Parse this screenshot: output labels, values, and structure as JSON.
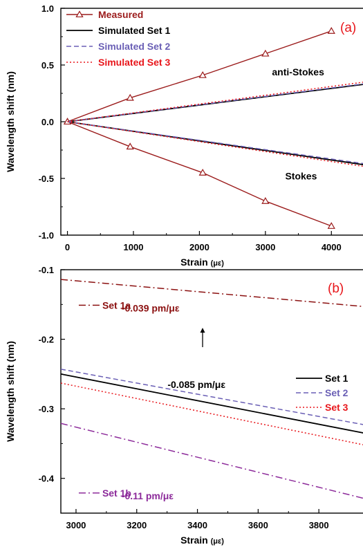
{
  "colors": {
    "measured": "#9b1b1b",
    "set1": "#000000",
    "set2": "#6a5fb5",
    "set3": "#e8161b",
    "set1a": "#8b1010",
    "set1b": "#8c2a9a",
    "panel_label": "#e8161b"
  },
  "chart_data": [
    {
      "type": "line",
      "panel_label": "(a)",
      "xlabel": "Strain",
      "xlabel_unit": "(με)",
      "ylabel": "Wavelength shift (nm)",
      "xlim": [
        -100,
        4500
      ],
      "ylim": [
        -1.0,
        1.0
      ],
      "x_ticks": [
        0,
        1000,
        2000,
        3000,
        4000
      ],
      "x_tick_labels": [
        "0",
        "1000",
        "2000",
        "3000",
        "4000"
      ],
      "y_ticks": [
        1.0,
        0.5,
        0.0,
        -0.5,
        -1.0
      ],
      "y_tick_labels": [
        "1.0",
        "0.5",
        "0.0",
        "-0.5",
        "-1.0"
      ],
      "legend_position": "top-left",
      "annotations": [
        {
          "text": "anti-Stokes",
          "x": 3100,
          "y": 0.41
        },
        {
          "text": "Stokes",
          "x": 3300,
          "y": -0.51
        }
      ],
      "series": [
        {
          "name": "Measured",
          "style": "measured",
          "branch": "anti-Stokes",
          "x": [
            0,
            950,
            2050,
            3000,
            4000
          ],
          "y": [
            0.0,
            0.21,
            0.41,
            0.6,
            0.8
          ]
        },
        {
          "name": "Measured",
          "style": "measured",
          "branch": "Stokes",
          "x": [
            0,
            950,
            2050,
            3000,
            4000
          ],
          "y": [
            0.0,
            -0.22,
            -0.45,
            -0.7,
            -0.92
          ]
        },
        {
          "name": "Simulated Set 1",
          "style": "set1",
          "branch": "anti-Stokes",
          "x": [
            0,
            4500
          ],
          "y": [
            0.0,
            0.33
          ]
        },
        {
          "name": "Simulated Set 1",
          "style": "set1",
          "branch": "Stokes",
          "x": [
            0,
            4500
          ],
          "y": [
            0.0,
            -0.38
          ]
        },
        {
          "name": "Simulated Set 2",
          "style": "set2",
          "branch": "anti-Stokes",
          "x": [
            0,
            4500
          ],
          "y": [
            0.0,
            0.335
          ]
        },
        {
          "name": "Simulated Set 2",
          "style": "set2",
          "branch": "Stokes",
          "x": [
            0,
            4500
          ],
          "y": [
            0.0,
            -0.37
          ]
        },
        {
          "name": "Simulated Set 3",
          "style": "set3",
          "branch": "anti-Stokes",
          "x": [
            0,
            4500
          ],
          "y": [
            0.0,
            0.35
          ]
        },
        {
          "name": "Simulated Set 3",
          "style": "set3",
          "branch": "Stokes",
          "x": [
            0,
            4500
          ],
          "y": [
            0.0,
            -0.395
          ]
        }
      ]
    },
    {
      "type": "line",
      "panel_label": "(b)",
      "xlabel": "Strain",
      "xlabel_unit": "(με)",
      "ylabel": "Wavelength shift (nm)",
      "xlim": [
        2950,
        3950
      ],
      "ylim": [
        -0.45,
        -0.1
      ],
      "x_ticks": [
        3000,
        3200,
        3400,
        3600,
        3800
      ],
      "x_tick_labels": [
        "3000",
        "3200",
        "3400",
        "3600",
        "3800"
      ],
      "y_ticks": [
        -0.1,
        -0.2,
        -0.3,
        -0.4
      ],
      "y_tick_labels": [
        "-0.1",
        "-0.2",
        "-0.3",
        "-0.4"
      ],
      "legend_position": "center-right",
      "rate_annotations": [
        {
          "text": "-0.085 pm/με",
          "x": 3420,
          "y": -0.265
        },
        {
          "text": "-0.039 pm/με",
          "x": 3150,
          "y": -0.155
        },
        {
          "text": "-0.11 pm/με",
          "x": 3150,
          "y": -0.425
        }
      ],
      "inline_labels": [
        {
          "text": "Set 1a",
          "style": "set1a",
          "x": 3000,
          "y": -0.155
        },
        {
          "text": "Set 1b",
          "style": "set1b",
          "x": 3000,
          "y": -0.425
        }
      ],
      "series": [
        {
          "name": "Set 1a",
          "style": "set1a",
          "x": [
            2950,
            3950
          ],
          "y": [
            -0.114,
            -0.153
          ]
        },
        {
          "name": "Set 1",
          "style": "set1",
          "x": [
            2950,
            3950
          ],
          "y": [
            -0.25,
            -0.335
          ]
        },
        {
          "name": "Set 2",
          "style": "set2",
          "x": [
            2950,
            3950
          ],
          "y": [
            -0.243,
            -0.323
          ]
        },
        {
          "name": "Set 3",
          "style": "set3",
          "x": [
            2950,
            3950
          ],
          "y": [
            -0.263,
            -0.352
          ]
        },
        {
          "name": "Set 1b",
          "style": "set1b",
          "x": [
            2950,
            3950
          ],
          "y": [
            -0.321,
            -0.429
          ]
        }
      ]
    }
  ]
}
